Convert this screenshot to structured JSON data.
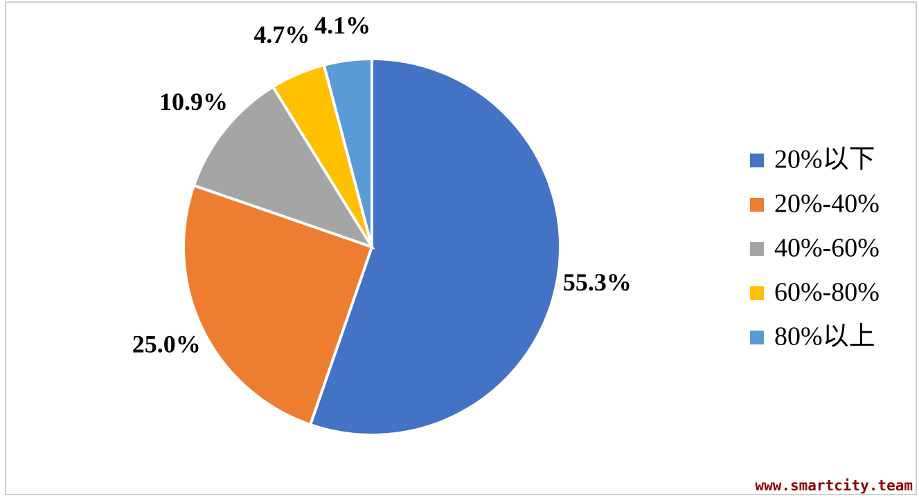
{
  "chart_data": {
    "type": "pie",
    "categories": [
      "20%以下",
      "20%-40%",
      "40%-60%",
      "60%-80%",
      "80%以上"
    ],
    "values": [
      55.3,
      25.0,
      10.9,
      4.7,
      4.1
    ],
    "value_labels": [
      "55.3%",
      "25.0%",
      "10.9%",
      "4.7%",
      "4.1%"
    ],
    "colors": [
      "#4472c4",
      "#ed7d31",
      "#a5a5a5",
      "#ffc000",
      "#5b9bd5"
    ],
    "legend": "right"
  },
  "watermark": "www.smartcity.team"
}
